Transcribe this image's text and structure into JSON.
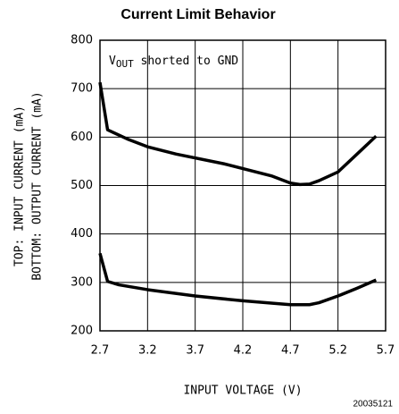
{
  "chart_data": {
    "type": "line",
    "title": "Current Limit Behavior",
    "xlabel": "INPUT VOLTAGE (V)",
    "ylabel": [
      "TOP: INPUT CURRENT (mA)",
      "BOTTOM: OUTPUT CURRENT (mA)"
    ],
    "annotation": {
      "base": "V",
      "subscript": "OUT",
      "text": " shorted to GND"
    },
    "footnote": "20035121",
    "series": [
      {
        "color": "#000000",
        "x": [
          2.7,
          2.78,
          3.0,
          3.2,
          3.5,
          4.0,
          4.5,
          4.7,
          4.8,
          4.9,
          5.0,
          5.2,
          5.4,
          5.6
        ],
        "values": [
          713,
          615,
          595,
          580,
          565,
          545,
          520,
          505,
          502,
          503,
          510,
          528,
          565,
          602
        ]
      },
      {
        "color": "#000000",
        "x": [
          2.7,
          2.78,
          2.9,
          3.2,
          3.7,
          4.2,
          4.7,
          4.9,
          5.0,
          5.2,
          5.4,
          5.6
        ],
        "values": [
          360,
          302,
          295,
          285,
          272,
          262,
          254,
          254,
          258,
          272,
          288,
          305
        ]
      }
    ],
    "xlim": [
      2.7,
      5.7
    ],
    "xticks": [
      2.7,
      3.2,
      3.7,
      4.2,
      4.7,
      5.2,
      5.7
    ],
    "ylim": [
      200,
      800
    ],
    "yticks": [
      200,
      300,
      400,
      500,
      600,
      700,
      800
    ],
    "grid": true
  }
}
